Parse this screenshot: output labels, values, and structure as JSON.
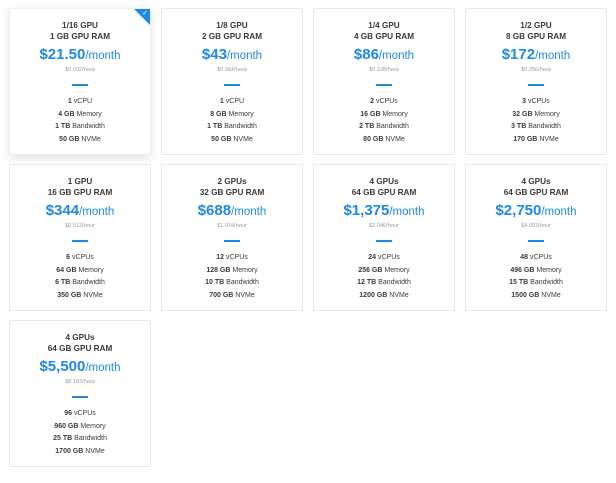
{
  "plans": [
    {
      "gpu": "1/16 GPU",
      "ram": "1 GB GPU RAM",
      "price": "$21.50",
      "period": "/month",
      "hourly": "$0.032/hour",
      "vcpu_num": "1",
      "vcpu_label": "vCPU",
      "mem_num": "4 GB",
      "mem_label": "Memory",
      "bw_num": "1 TB",
      "bw_label": "Bandwidth",
      "disk_num": "50 GB",
      "disk_label": "NVMe",
      "selected": true
    },
    {
      "gpu": "1/8 GPU",
      "ram": "2 GB GPU RAM",
      "price": "$43",
      "period": "/month",
      "hourly": "$0.064/hour",
      "vcpu_num": "1",
      "vcpu_label": "vCPU",
      "mem_num": "8 GB",
      "mem_label": "Memory",
      "bw_num": "1 TB",
      "bw_label": "Bandwidth",
      "disk_num": "50 GB",
      "disk_label": "NVMe",
      "selected": false
    },
    {
      "gpu": "1/4 GPU",
      "ram": "4 GB GPU RAM",
      "price": "$86",
      "period": "/month",
      "hourly": "$0.128/hour",
      "vcpu_num": "2",
      "vcpu_label": "vCPUs",
      "mem_num": "16 GB",
      "mem_label": "Memory",
      "bw_num": "2 TB",
      "bw_label": "Bandwidth",
      "disk_num": "80 GB",
      "disk_label": "NVMe",
      "selected": false
    },
    {
      "gpu": "1/2 GPU",
      "ram": "8 GB GPU RAM",
      "price": "$172",
      "period": "/month",
      "hourly": "$0.256/hour",
      "vcpu_num": "3",
      "vcpu_label": "vCPUs",
      "mem_num": "32 GB",
      "mem_label": "Memory",
      "bw_num": "3 TB",
      "bw_label": "Bandwidth",
      "disk_num": "170 GB",
      "disk_label": "NVMe",
      "selected": false
    },
    {
      "gpu": "1 GPU",
      "ram": "16 GB GPU RAM",
      "price": "$344",
      "period": "/month",
      "hourly": "$0.512/hour",
      "vcpu_num": "6",
      "vcpu_label": "vCPUs",
      "mem_num": "64 GB",
      "mem_label": "Memory",
      "bw_num": "6 TB",
      "bw_label": "Bandwidth",
      "disk_num": "350 GB",
      "disk_label": "NVMe",
      "selected": false
    },
    {
      "gpu": "2 GPUs",
      "ram": "32 GB GPU RAM",
      "price": "$688",
      "period": "/month",
      "hourly": "$1.024/hour",
      "vcpu_num": "12",
      "vcpu_label": "vCPUs",
      "mem_num": "128 GB",
      "mem_label": "Memory",
      "bw_num": "10 TB",
      "bw_label": "Bandwidth",
      "disk_num": "700 GB",
      "disk_label": "NVMe",
      "selected": false
    },
    {
      "gpu": "4 GPUs",
      "ram": "64 GB GPU RAM",
      "price": "$1,375",
      "period": "/month",
      "hourly": "$2.046/hour",
      "vcpu_num": "24",
      "vcpu_label": "vCPUs",
      "mem_num": "256 GB",
      "mem_label": "Memory",
      "bw_num": "12 TB",
      "bw_label": "Bandwidth",
      "disk_num": "1200 GB",
      "disk_label": "NVMe",
      "selected": false
    },
    {
      "gpu": "4 GPUs",
      "ram": "64 GB GPU RAM",
      "price": "$2,750",
      "period": "/month",
      "hourly": "$4.092/hour",
      "vcpu_num": "48",
      "vcpu_label": "vCPUs",
      "mem_num": "496 GB",
      "mem_label": "Memory",
      "bw_num": "15 TB",
      "bw_label": "Bandwidth",
      "disk_num": "1500 GB",
      "disk_label": "NVMe",
      "selected": false
    },
    {
      "gpu": "4 GPUs",
      "ram": "64 GB GPU RAM",
      "price": "$5,500",
      "period": "/month",
      "hourly": "$8.183/hour",
      "vcpu_num": "96",
      "vcpu_label": "vCPUs",
      "mem_num": "960 GB",
      "mem_label": "Memory",
      "bw_num": "25 TB",
      "bw_label": "Bandwidth",
      "disk_num": "1700 GB",
      "disk_label": "NVMe",
      "selected": false
    }
  ],
  "selected_mark": "✓",
  "colors": {
    "accent": "#1e88e5",
    "text": "#3a3a3a",
    "muted": "#9a9a9a",
    "border": "#e8e8e8"
  }
}
